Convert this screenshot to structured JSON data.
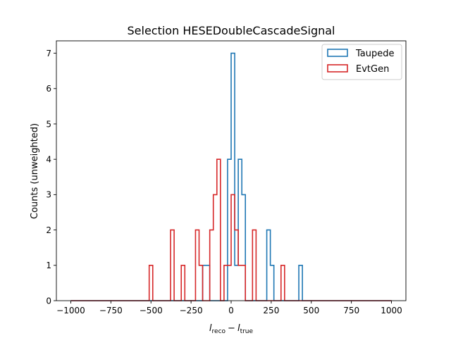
{
  "chart_data": {
    "type": "histogram",
    "title": "Selection HESEDoubleCascadeSignal",
    "ylabel": "Counts (unweighted)",
    "xlabel": {
      "l1": "l",
      "s1": "reco",
      "minus": "−",
      "l2": "l",
      "s2": "true"
    },
    "xlim": [
      -1090,
      1090
    ],
    "ylim": [
      0,
      7.35
    ],
    "bin_edges": [
      -1000,
      -977.78,
      -955.56,
      -933.33,
      -911.11,
      -888.89,
      -866.67,
      -844.44,
      -822.22,
      -800,
      -777.78,
      -755.56,
      -733.33,
      -711.11,
      -688.89,
      -666.67,
      -644.44,
      -622.22,
      -600,
      -577.78,
      -555.56,
      -533.33,
      -511.11,
      -488.89,
      -466.67,
      -444.44,
      -422.22,
      -400,
      -377.78,
      -355.56,
      -333.33,
      -311.11,
      -288.89,
      -266.67,
      -244.44,
      -222.22,
      -200,
      -177.78,
      -155.56,
      -133.33,
      -111.11,
      -88.89,
      -66.67,
      -44.44,
      -22.22,
      0,
      22.22,
      44.44,
      66.67,
      88.89,
      111.11,
      133.33,
      155.56,
      177.78,
      200,
      222.22,
      244.44,
      266.67,
      288.89,
      311.11,
      333.33,
      355.56,
      377.78,
      400,
      422.22,
      444.44,
      466.67,
      488.89,
      511.11,
      533.33,
      555.56,
      577.78,
      600,
      622.22,
      644.44,
      666.67,
      688.89,
      711.11,
      733.33,
      755.56,
      777.78,
      800,
      822.22,
      844.44,
      866.67,
      888.89,
      911.11,
      933.33,
      955.56,
      977.78,
      1000
    ],
    "series": [
      {
        "name": "Taupede",
        "color": "#1f77b4",
        "values": [
          0,
          0,
          0,
          0,
          0,
          0,
          0,
          0,
          0,
          0,
          0,
          0,
          0,
          0,
          0,
          0,
          0,
          0,
          0,
          0,
          0,
          0,
          0,
          0,
          0,
          0,
          0,
          0,
          0,
          0,
          0,
          0,
          0,
          0,
          0,
          0,
          0,
          1,
          1,
          0,
          0,
          0,
          0,
          0,
          4,
          7,
          1,
          4,
          3,
          0,
          0,
          0,
          0,
          0,
          0,
          2,
          1,
          0,
          0,
          0,
          0,
          0,
          0,
          0,
          1,
          0,
          0,
          0,
          0,
          0,
          0,
          0,
          0,
          0,
          0,
          0,
          0,
          0,
          0,
          0,
          0,
          0,
          0,
          0,
          0,
          0,
          0,
          0,
          0,
          0
        ]
      },
      {
        "name": "EvtGen",
        "color": "#d62728",
        "values": [
          0,
          0,
          0,
          0,
          0,
          0,
          0,
          0,
          0,
          0,
          0,
          0,
          0,
          0,
          0,
          0,
          0,
          0,
          0,
          0,
          0,
          0,
          1,
          0,
          0,
          0,
          0,
          0,
          2,
          0,
          0,
          1,
          0,
          0,
          0,
          2,
          1,
          0,
          0,
          2,
          3,
          4,
          0,
          1,
          1,
          3,
          2,
          1,
          1,
          0,
          0,
          2,
          0,
          0,
          0,
          0,
          0,
          0,
          0,
          1,
          0,
          0,
          0,
          0,
          0,
          0,
          0,
          0,
          0,
          0,
          0,
          0,
          0,
          0,
          0,
          0,
          0,
          0,
          0,
          0,
          0,
          0,
          0,
          0,
          0,
          0,
          0,
          0,
          0,
          0
        ]
      }
    ],
    "x_ticks": [
      -1000,
      -750,
      -500,
      -250,
      0,
      250,
      500,
      750,
      1000
    ],
    "x_tick_labels": [
      "−1000",
      "−750",
      "−500",
      "−250",
      "0",
      "250",
      "500",
      "750",
      "1000"
    ],
    "y_ticks": [
      0,
      1,
      2,
      3,
      4,
      5,
      6,
      7
    ],
    "y_tick_labels": [
      "0",
      "1",
      "2",
      "3",
      "4",
      "5",
      "6",
      "7"
    ],
    "legend_position": "top-right",
    "grid": false
  }
}
